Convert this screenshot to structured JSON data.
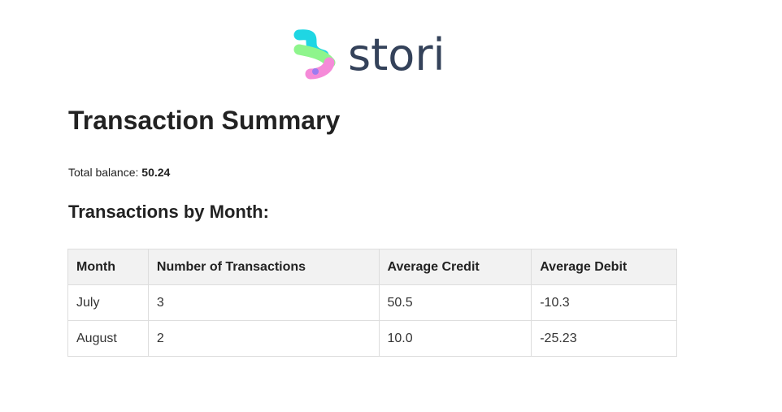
{
  "brand": {
    "name": "stori",
    "colors": {
      "text": "#34425a",
      "cyan": "#1fd6e3",
      "green": "#8ef58c",
      "pink": "#f58ad8",
      "purple": "#9b7cf0"
    }
  },
  "summary": {
    "title": "Transaction Summary",
    "balance_label": "Total balance:",
    "balance_value": "50.24"
  },
  "transactions": {
    "heading": "Transactions by Month:",
    "columns": [
      "Month",
      "Number of Transactions",
      "Average Credit",
      "Average Debit"
    ],
    "rows": [
      [
        "July",
        "3",
        "50.5",
        "-10.3"
      ],
      [
        "August",
        "2",
        "10.0",
        "-25.23"
      ]
    ]
  }
}
